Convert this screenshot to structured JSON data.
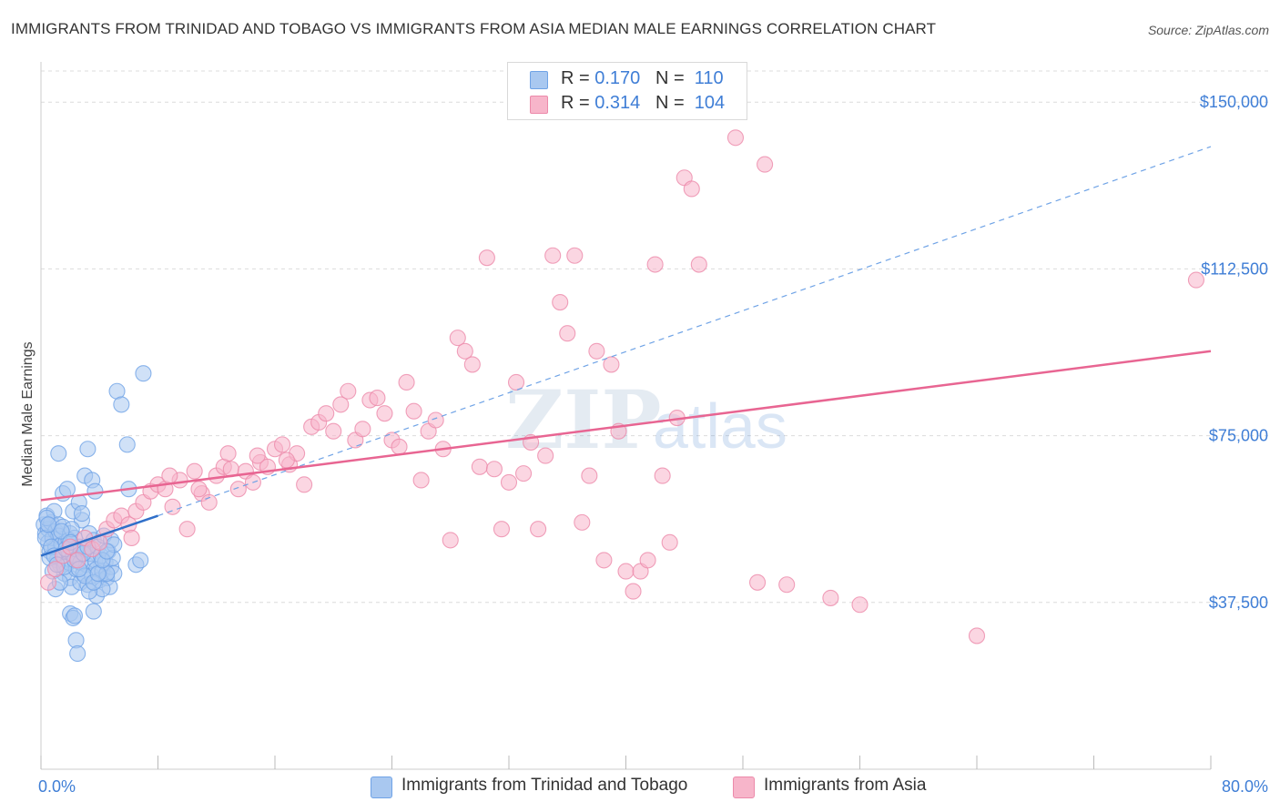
{
  "title": "IMMIGRANTS FROM TRINIDAD AND TOBAGO VS IMMIGRANTS FROM ASIA MEDIAN MALE EARNINGS CORRELATION CHART",
  "source": "Source: ZipAtlas.com",
  "watermark": {
    "zip": "ZIP",
    "atlas": "atlas"
  },
  "legend": {
    "rows": [
      {
        "r_label": "R = ",
        "r_value": "0.170",
        "n_label": "N = ",
        "n_value": "110",
        "color": "#a9c8f0"
      },
      {
        "r_label": "R = ",
        "r_value": "0.314",
        "n_label": "N = ",
        "n_value": "104",
        "color": "#f7b5ca"
      }
    ]
  },
  "bottom_legend": [
    {
      "label": "Immigrants from Trinidad and Tobago",
      "color": "#a9c8f0"
    },
    {
      "label": "Immigrants from Asia",
      "color": "#f7b5ca"
    }
  ],
  "chart_data": {
    "type": "scatter",
    "title": "IMMIGRANTS FROM TRINIDAD AND TOBAGO VS IMMIGRANTS FROM ASIA MEDIAN MALE EARNINGS CORRELATION CHART",
    "xlabel": "",
    "ylabel": "Median Male Earnings",
    "xlim": [
      0,
      80
    ],
    "ylim": [
      0,
      157000
    ],
    "x_tick_labels": [
      "0.0%",
      "80.0%"
    ],
    "y_ticks": [
      {
        "value": 37500,
        "label": "$37,500"
      },
      {
        "value": 75000,
        "label": "$75,000"
      },
      {
        "value": 112500,
        "label": "$112,500"
      },
      {
        "value": 150000,
        "label": "$150,000"
      }
    ],
    "series": [
      {
        "name": "Immigrants from Trinidad and Tobago",
        "color": "#6fa3e6",
        "fill": "#a9c8f0",
        "trend": {
          "x": [
            0,
            8
          ],
          "y": [
            48000,
            57000
          ],
          "style": "solid",
          "color": "#2f6fc9"
        },
        "trend_ext": {
          "x": [
            8,
            80
          ],
          "y": [
            57000,
            140000
          ],
          "style": "dashed",
          "color": "#6fa3e6"
        },
        "points": [
          [
            0.2,
            55000
          ],
          [
            0.3,
            53000
          ],
          [
            0.4,
            57000
          ],
          [
            0.5,
            51000
          ],
          [
            0.5,
            54000
          ],
          [
            0.6,
            49000
          ],
          [
            0.7,
            55500
          ],
          [
            0.8,
            52000
          ],
          [
            0.9,
            58000
          ],
          [
            1.0,
            50000
          ],
          [
            1.0,
            53500
          ],
          [
            1.1,
            47000
          ],
          [
            1.2,
            55000
          ],
          [
            1.2,
            52500
          ],
          [
            1.3,
            46000
          ],
          [
            1.4,
            50500
          ],
          [
            1.5,
            48000
          ],
          [
            1.5,
            54500
          ],
          [
            1.6,
            44000
          ],
          [
            1.7,
            51000
          ],
          [
            1.8,
            49000
          ],
          [
            1.9,
            46500
          ],
          [
            2.0,
            43000
          ],
          [
            2.0,
            53000
          ],
          [
            2.1,
            41000
          ],
          [
            2.2,
            48000
          ],
          [
            2.3,
            52000
          ],
          [
            2.4,
            45000
          ],
          [
            2.5,
            47500
          ],
          [
            2.6,
            50000
          ],
          [
            2.7,
            42000
          ],
          [
            2.8,
            56000
          ],
          [
            2.9,
            44000
          ],
          [
            3.0,
            49500
          ],
          [
            3.1,
            46000
          ],
          [
            3.2,
            41500
          ],
          [
            3.3,
            53000
          ],
          [
            3.4,
            48500
          ],
          [
            3.5,
            43500
          ],
          [
            3.6,
            51500
          ],
          [
            3.7,
            47000
          ],
          [
            3.8,
            45000
          ],
          [
            3.9,
            50000
          ],
          [
            4.0,
            42500
          ],
          [
            4.1,
            48000
          ],
          [
            4.2,
            44500
          ],
          [
            4.3,
            52500
          ],
          [
            4.4,
            46500
          ],
          [
            4.5,
            43000
          ],
          [
            4.6,
            49000
          ],
          [
            4.7,
            41000
          ],
          [
            4.8,
            45500
          ],
          [
            4.9,
            47500
          ],
          [
            5.0,
            44000
          ],
          [
            1.2,
            71000
          ],
          [
            1.5,
            62000
          ],
          [
            1.8,
            63000
          ],
          [
            2.2,
            58000
          ],
          [
            2.6,
            60000
          ],
          [
            2.8,
            57500
          ],
          [
            3.0,
            66000
          ],
          [
            3.2,
            72000
          ],
          [
            3.5,
            65000
          ],
          [
            3.7,
            62500
          ],
          [
            2.0,
            35000
          ],
          [
            2.2,
            34000
          ],
          [
            2.4,
            29000
          ],
          [
            2.5,
            26000
          ],
          [
            2.3,
            34500
          ],
          [
            3.6,
            35500
          ],
          [
            3.8,
            39000
          ],
          [
            4.2,
            40500
          ],
          [
            4.5,
            44000
          ],
          [
            4.8,
            51500
          ],
          [
            5.0,
            50500
          ],
          [
            6.0,
            63000
          ],
          [
            6.5,
            46000
          ],
          [
            6.8,
            47000
          ],
          [
            7.0,
            89000
          ],
          [
            5.9,
            73000
          ],
          [
            5.2,
            85000
          ],
          [
            5.5,
            82000
          ],
          [
            0.4,
            56500
          ],
          [
            0.6,
            47500
          ],
          [
            0.8,
            44500
          ],
          [
            1.0,
            40500
          ],
          [
            1.3,
            42000
          ],
          [
            1.6,
            45500
          ],
          [
            1.9,
            51500
          ],
          [
            2.1,
            54000
          ],
          [
            2.4,
            49500
          ],
          [
            2.7,
            46500
          ],
          [
            3.0,
            43500
          ],
          [
            3.3,
            40000
          ],
          [
            3.6,
            42000
          ],
          [
            3.9,
            44000
          ],
          [
            4.2,
            47000
          ],
          [
            4.5,
            49000
          ],
          [
            0.3,
            52000
          ],
          [
            0.5,
            55000
          ],
          [
            0.7,
            50000
          ],
          [
            0.9,
            48000
          ],
          [
            1.1,
            46000
          ],
          [
            1.4,
            53500
          ],
          [
            1.7,
            49500
          ],
          [
            2.0,
            51000
          ],
          [
            2.3,
            47000
          ],
          [
            2.6,
            45000
          ],
          [
            2.9,
            48500
          ],
          [
            3.2,
            50000
          ]
        ]
      },
      {
        "name": "Immigrants from Asia",
        "color": "#ec8aaa",
        "fill": "#f7b5ca",
        "trend": {
          "x": [
            0,
            80
          ],
          "y": [
            60500,
            94000
          ],
          "style": "solid",
          "color": "#e86592"
        },
        "points": [
          [
            0.5,
            42000
          ],
          [
            1.0,
            45000
          ],
          [
            1.5,
            48000
          ],
          [
            2.0,
            50000
          ],
          [
            2.5,
            47000
          ],
          [
            3.0,
            52000
          ],
          [
            3.5,
            49500
          ],
          [
            4.0,
            51000
          ],
          [
            4.5,
            54000
          ],
          [
            5.0,
            56000
          ],
          [
            5.5,
            57000
          ],
          [
            6.0,
            55000
          ],
          [
            6.5,
            58000
          ],
          [
            7.0,
            60000
          ],
          [
            7.5,
            62500
          ],
          [
            8.0,
            64000
          ],
          [
            8.5,
            63000
          ],
          [
            9.0,
            59000
          ],
          [
            9.5,
            65000
          ],
          [
            10.0,
            54000
          ],
          [
            10.5,
            67000
          ],
          [
            11.0,
            62000
          ],
          [
            11.5,
            60000
          ],
          [
            12.0,
            66000
          ],
          [
            12.5,
            68000
          ],
          [
            13.0,
            67500
          ],
          [
            13.5,
            63000
          ],
          [
            14.0,
            67000
          ],
          [
            14.5,
            64500
          ],
          [
            15.0,
            69000
          ],
          [
            15.5,
            68000
          ],
          [
            16.0,
            72000
          ],
          [
            16.5,
            73000
          ],
          [
            17.0,
            68500
          ],
          [
            17.5,
            71000
          ],
          [
            18.0,
            64000
          ],
          [
            18.5,
            77000
          ],
          [
            19.0,
            78000
          ],
          [
            19.5,
            80000
          ],
          [
            20.0,
            76000
          ],
          [
            20.5,
            82000
          ],
          [
            21.0,
            85000
          ],
          [
            21.5,
            74000
          ],
          [
            22.0,
            76500
          ],
          [
            22.5,
            83000
          ],
          [
            23.0,
            83500
          ],
          [
            23.5,
            80000
          ],
          [
            24.0,
            74000
          ],
          [
            24.5,
            72500
          ],
          [
            25.0,
            87000
          ],
          [
            25.5,
            80500
          ],
          [
            26.0,
            65000
          ],
          [
            26.5,
            76000
          ],
          [
            27.0,
            78500
          ],
          [
            27.5,
            72000
          ],
          [
            28.0,
            51500
          ],
          [
            28.5,
            97000
          ],
          [
            29.0,
            94000
          ],
          [
            29.5,
            91000
          ],
          [
            30.0,
            68000
          ],
          [
            30.5,
            115000
          ],
          [
            31.0,
            67500
          ],
          [
            31.5,
            54000
          ],
          [
            32.0,
            64500
          ],
          [
            32.5,
            87000
          ],
          [
            33.0,
            66500
          ],
          [
            33.5,
            73500
          ],
          [
            34.0,
            54000
          ],
          [
            34.5,
            70500
          ],
          [
            35.0,
            115500
          ],
          [
            35.5,
            105000
          ],
          [
            36.0,
            98000
          ],
          [
            36.5,
            115500
          ],
          [
            37.0,
            55500
          ],
          [
            37.5,
            66000
          ],
          [
            38.0,
            94000
          ],
          [
            38.5,
            47000
          ],
          [
            39.0,
            91000
          ],
          [
            39.5,
            76000
          ],
          [
            40.0,
            44500
          ],
          [
            40.5,
            40000
          ],
          [
            41.0,
            44500
          ],
          [
            41.5,
            47000
          ],
          [
            42.0,
            113500
          ],
          [
            42.5,
            66000
          ],
          [
            43.0,
            51000
          ],
          [
            43.5,
            79000
          ],
          [
            44.0,
            133000
          ],
          [
            44.5,
            130500
          ],
          [
            45.0,
            113500
          ],
          [
            47.5,
            142000
          ],
          [
            49.0,
            42000
          ],
          [
            49.5,
            136000
          ],
          [
            51.0,
            41500
          ],
          [
            54.0,
            38500
          ],
          [
            56.0,
            37000
          ],
          [
            64.0,
            30000
          ],
          [
            79.0,
            110000
          ],
          [
            6.2,
            52000
          ],
          [
            8.8,
            66000
          ],
          [
            10.8,
            63000
          ],
          [
            12.8,
            71000
          ],
          [
            14.8,
            70500
          ],
          [
            16.8,
            69500
          ]
        ]
      }
    ]
  }
}
